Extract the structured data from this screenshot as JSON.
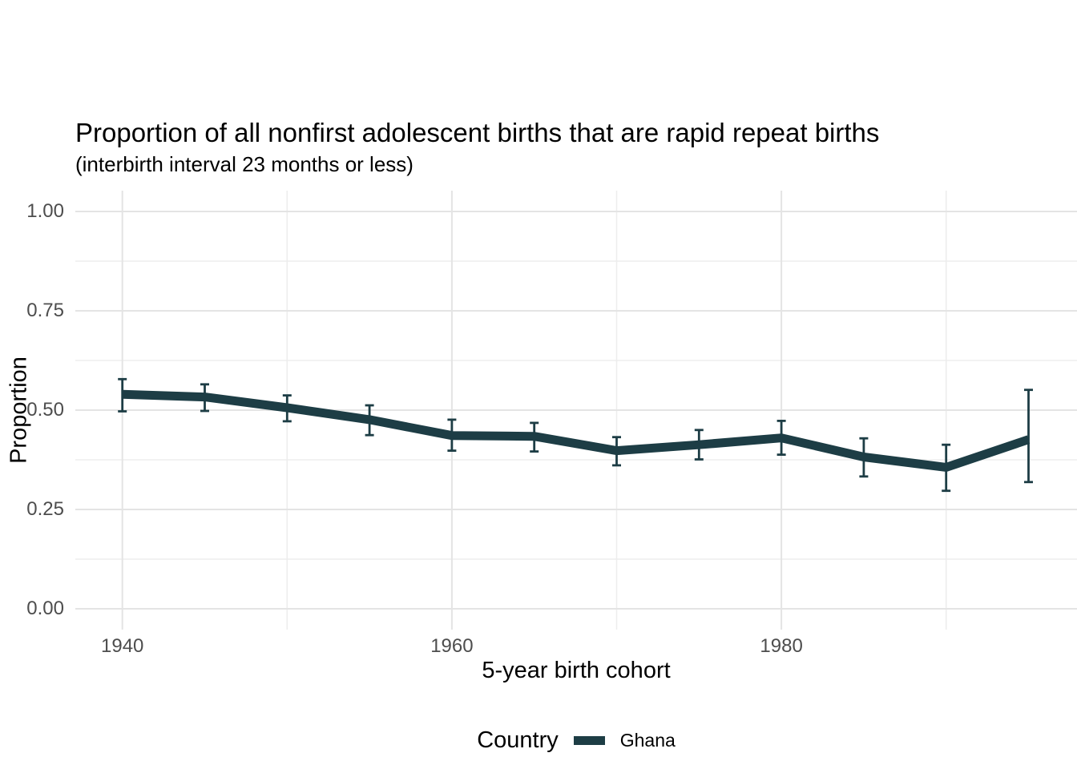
{
  "chart_data": {
    "type": "line",
    "title": "Proportion of all nonfirst adolescent births that are rapid repeat births",
    "subtitle": "(interbirth interval 23 months or less)",
    "xlabel": "5-year birth cohort",
    "ylabel": "Proportion",
    "legend_title": "Country",
    "legend_position": "bottom",
    "grid": true,
    "error_bars": true,
    "x": [
      1940,
      1945,
      1950,
      1955,
      1960,
      1965,
      1970,
      1975,
      1980,
      1985,
      1990,
      1995
    ],
    "series": [
      {
        "name": "Ghana",
        "color": "#1d3d45",
        "values": [
          0.54,
          0.533,
          0.506,
          0.476,
          0.436,
          0.434,
          0.398,
          0.413,
          0.43,
          0.382,
          0.356,
          0.426
        ],
        "ci_low": [
          0.497,
          0.498,
          0.472,
          0.437,
          0.398,
          0.396,
          0.361,
          0.376,
          0.388,
          0.333,
          0.297,
          0.319
        ],
        "ci_high": [
          0.578,
          0.565,
          0.537,
          0.512,
          0.476,
          0.468,
          0.432,
          0.45,
          0.473,
          0.429,
          0.413,
          0.551
        ]
      }
    ],
    "x_ticks": [
      1940,
      1960,
      1980
    ],
    "x_tick_labels": [
      "1940",
      "1960",
      "1980"
    ],
    "x_minor_gridlines": [
      1950,
      1970,
      1990
    ],
    "y_ticks": [
      0,
      0.25,
      0.5,
      0.75,
      1
    ],
    "y_tick_labels": [
      "0.00",
      "0.25",
      "0.50",
      "0.75",
      "1.00"
    ],
    "y_minor_gridlines": [
      0.125,
      0.375,
      0.625,
      0.875
    ],
    "xlim": [
      1937.25,
      1997.75
    ],
    "ylim": [
      -0.05,
      1.05
    ],
    "background_color": "#ffffff",
    "grid_major_color": "#e4e4e4",
    "grid_minor_color": "#ededed",
    "axis_text_color": "#4d4d4d"
  }
}
